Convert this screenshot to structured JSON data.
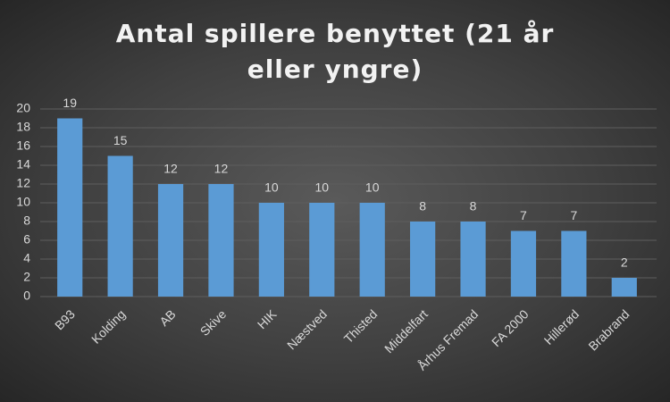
{
  "chart_data": {
    "type": "bar",
    "title": "Antal spillere benyttet (21 år eller yngre)",
    "categories": [
      "B93",
      "Kolding",
      "AB",
      "Skive",
      "HIK",
      "Næstved",
      "Thisted",
      "Middelfart",
      "Århus Fremad",
      "FA 2000",
      "Hillerød",
      "Brabrand"
    ],
    "values": [
      19,
      15,
      12,
      12,
      10,
      10,
      10,
      8,
      8,
      7,
      7,
      2
    ],
    "color": "#5b9bd5",
    "ylim": [
      0,
      20
    ],
    "yticks": [
      0,
      2,
      4,
      6,
      8,
      10,
      12,
      14,
      16,
      18,
      20
    ],
    "grid": true
  }
}
